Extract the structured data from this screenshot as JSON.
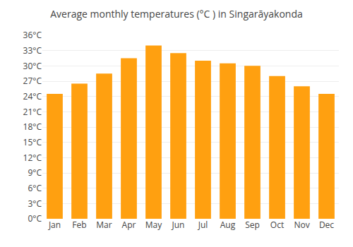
{
  "chart_data": {
    "type": "bar",
    "title": "Average monthly temperatures (°C ) in Singarāyakonda",
    "categories": [
      "Jan",
      "Feb",
      "Mar",
      "Apr",
      "May",
      "Jun",
      "Jul",
      "Aug",
      "Sep",
      "Oct",
      "Nov",
      "Dec"
    ],
    "values": [
      24.5,
      26.5,
      28.5,
      31.5,
      34.0,
      32.5,
      31.0,
      30.5,
      30.0,
      28.0,
      26.0,
      24.5
    ],
    "color": "#FFA010",
    "ylim": [
      0,
      36
    ],
    "yticks": [
      {
        "value": 0,
        "label": "0°C"
      },
      {
        "value": 3,
        "label": "3°C"
      },
      {
        "value": 6,
        "label": "6°C"
      },
      {
        "value": 9,
        "label": "9°C"
      },
      {
        "value": 12,
        "label": "12°C"
      },
      {
        "value": 15,
        "label": "15°C"
      },
      {
        "value": 18,
        "label": "18°C"
      },
      {
        "value": 21,
        "label": "21°C"
      },
      {
        "value": 24,
        "label": "24°C"
      },
      {
        "value": 27,
        "label": "27°C"
      },
      {
        "value": 30,
        "label": "30°C"
      },
      {
        "value": 33,
        "label": "33°C"
      },
      {
        "value": 36,
        "label": "36°C"
      }
    ],
    "grid": true
  }
}
